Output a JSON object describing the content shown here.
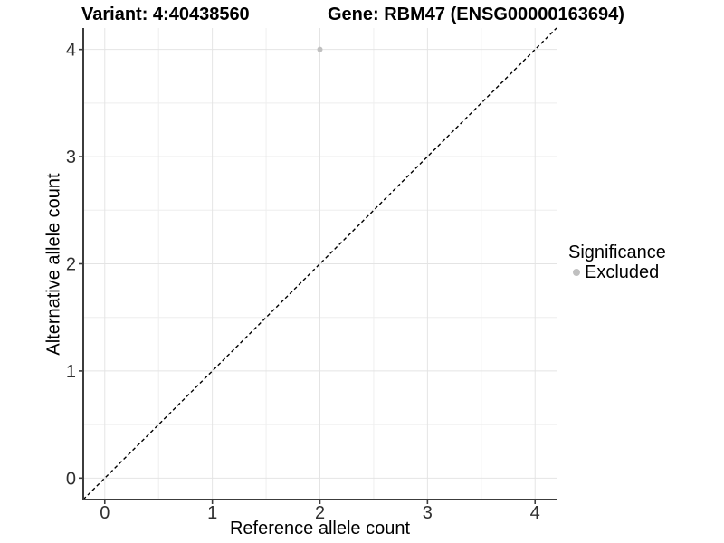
{
  "header": {
    "title_left": "Variant: 4:40438560",
    "title_right": "Gene: RBM47 (ENSG00000163694)"
  },
  "legend": {
    "title": "Significance",
    "items": [
      {
        "label": "Excluded",
        "color": "#c0c0c0"
      }
    ]
  },
  "colors": {
    "background": "#ffffff",
    "grid_major": "#e4e4e4",
    "grid_minor": "#eeeeee",
    "axis_line": "#3c3c3c",
    "tick_text": "#303030",
    "title_text": "#000000",
    "point": "#c0c0c0",
    "reference_line": "#000000"
  },
  "chart_data": {
    "type": "scatter",
    "title": "Variant: 4:40438560 — Gene: RBM47 (ENSG00000163694)",
    "xlabel": "Reference allele count",
    "ylabel": "Alternative allele count",
    "xlim": [
      -0.2,
      4.2
    ],
    "ylim": [
      -0.2,
      4.2
    ],
    "x_ticks": [
      0,
      1,
      2,
      3,
      4
    ],
    "y_ticks": [
      0,
      1,
      2,
      3,
      4
    ],
    "x_minor_ticks": [
      0.5,
      1.5,
      2.5,
      3.5
    ],
    "y_minor_ticks": [
      0.5,
      1.5,
      2.5,
      3.5
    ],
    "grid": true,
    "legend_position": "right",
    "series": [
      {
        "name": "Excluded",
        "color": "#c0c0c0",
        "points": [
          [
            2,
            4
          ]
        ]
      }
    ],
    "reference_line": {
      "type": "abline",
      "slope": 1,
      "intercept": 0,
      "style": "dashed",
      "color": "#000000"
    }
  }
}
